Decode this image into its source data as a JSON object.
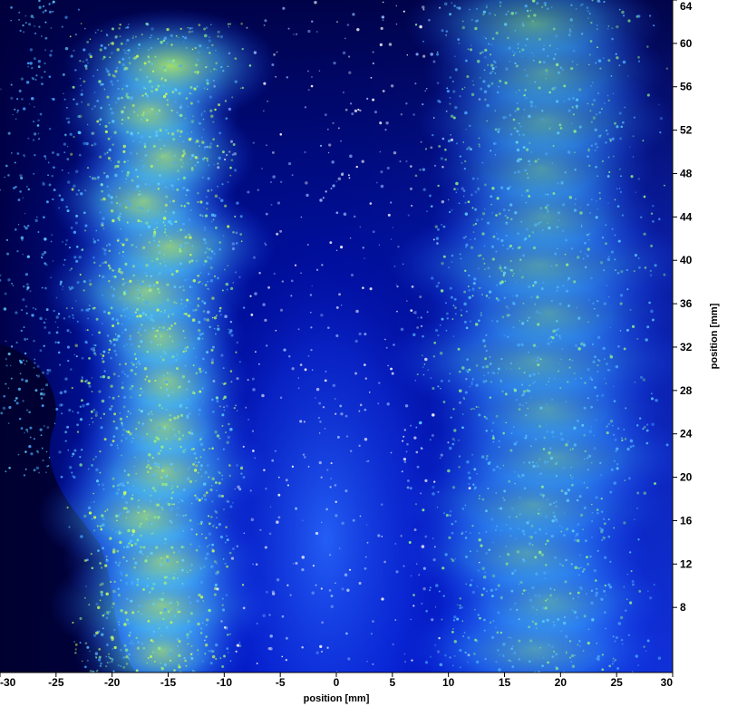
{
  "chart_data": {
    "type": "heatmap",
    "title": "",
    "xlabel": "position [mm]",
    "ylabel": "position [mm]",
    "xlim": [
      -30,
      30
    ],
    "ylim": [
      2,
      64
    ],
    "x_ticks": [
      -30,
      -25,
      -20,
      -15,
      -10,
      -5,
      0,
      5,
      10,
      15,
      20,
      25,
      30
    ],
    "y_ticks": [
      8,
      12,
      16,
      20,
      24,
      28,
      32,
      36,
      40,
      44,
      48,
      52,
      56,
      60,
      64
    ],
    "y_axis_side": "right",
    "grid": false,
    "colormap": [
      "#00003a",
      "#0000c8",
      "#1f5dff",
      "#5fd0ff",
      "#c8ff5a"
    ],
    "description_regions": [
      {
        "name": "left-plume",
        "x_center": -16,
        "x_width": 10,
        "y_range": [
          2,
          60
        ],
        "level": "high"
      },
      {
        "name": "right-plume",
        "x_center": 18,
        "x_width": 14,
        "y_range": [
          2,
          64
        ],
        "level": "medium"
      },
      {
        "name": "core",
        "x_center": 0,
        "x_width": 16,
        "y_range": [
          2,
          64
        ],
        "level": "low"
      }
    ]
  }
}
